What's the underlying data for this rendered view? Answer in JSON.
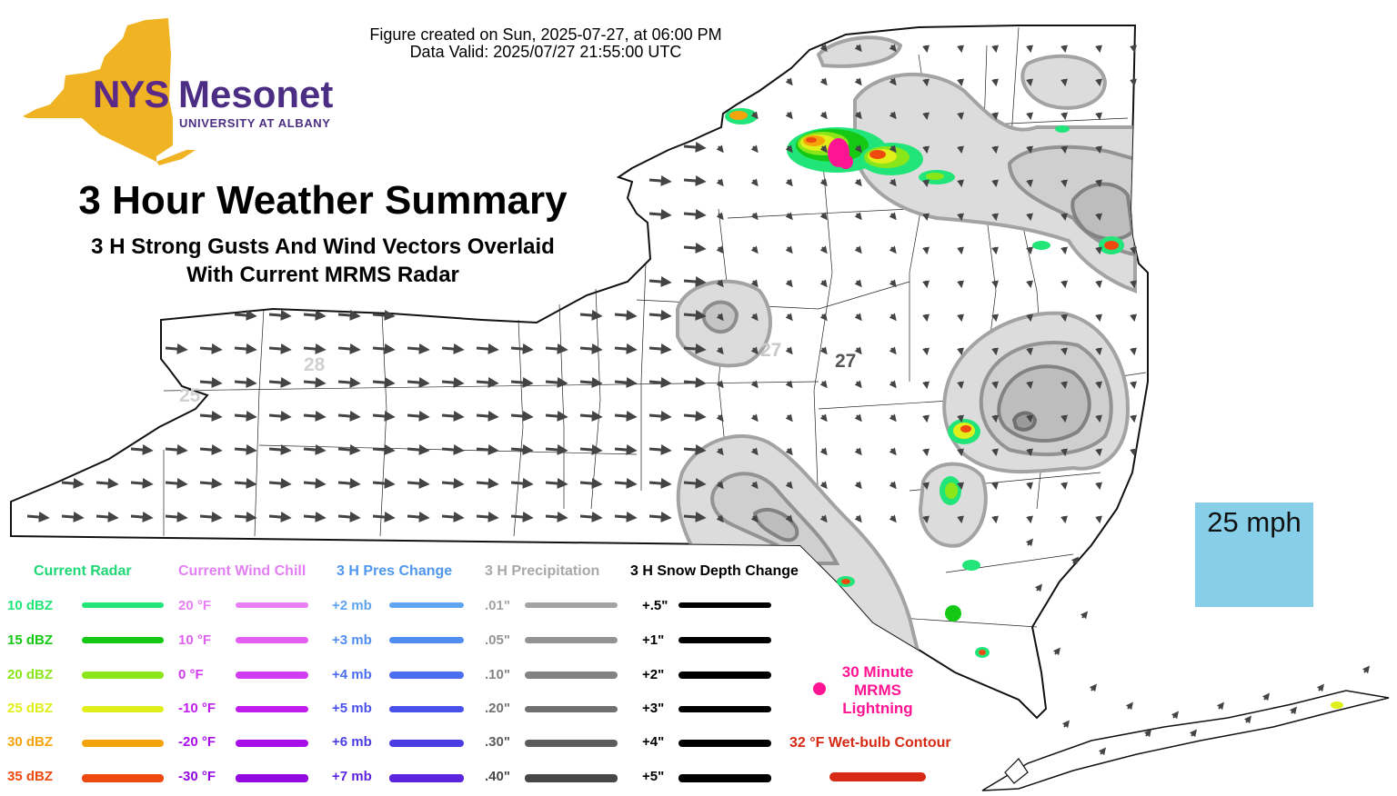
{
  "header": {
    "created": "Figure created on Sun, 2025-07-27, at 06:00 PM",
    "valid": "Data Valid: 2025/07/27 21:55:00 UTC"
  },
  "logo": {
    "brand_nys": "NYS",
    "brand_mesonet": "Mesonet",
    "university": "UNIVERSITY AT ALBANY",
    "state_color": "#f0b323",
    "purple": "#4b2e83"
  },
  "title": "3 Hour Weather Summary",
  "subtitle_line1": "3 H Strong Gusts And Wind Vectors Overlaid",
  "subtitle_line2": "With Current MRMS Radar",
  "scale": {
    "label": "25 mph",
    "color": "#87cfe9"
  },
  "contour_labels": [
    "25",
    "28",
    "27",
    "27"
  ],
  "legend": {
    "radar": {
      "title": "Current Radar",
      "color": "#1fd774",
      "items": [
        {
          "label": "10 dBZ",
          "color": "#22e57a"
        },
        {
          "label": "15 dBZ",
          "color": "#14c814"
        },
        {
          "label": "20 dBZ",
          "color": "#8ae619"
        },
        {
          "label": "25 dBZ",
          "color": "#e0ee1a"
        },
        {
          "label": "30 dBZ",
          "color": "#f5a30a"
        },
        {
          "label": "35 dBZ",
          "color": "#ee4a10"
        }
      ]
    },
    "wind_chill": {
      "title": "Current Wind Chill",
      "color": "#e27ff2",
      "items": [
        {
          "label": "20 °F",
          "color": "#e97ef5"
        },
        {
          "label": "10 °F",
          "color": "#e35ff3"
        },
        {
          "label": "0 °F",
          "color": "#d23cf0"
        },
        {
          "label": "-10 °F",
          "color": "#bf1ced"
        },
        {
          "label": "-20 °F",
          "color": "#a80ee8"
        },
        {
          "label": "-30 °F",
          "color": "#9308e0"
        }
      ]
    },
    "pressure": {
      "title": "3 H Pres Change",
      "color": "#4f97ef",
      "items": [
        {
          "label": "+2 mb",
          "color": "#5fa4ee"
        },
        {
          "label": "+3 mb",
          "color": "#4f8ef0"
        },
        {
          "label": "+4 mb",
          "color": "#4b6df0"
        },
        {
          "label": "+5 mb",
          "color": "#4a50ea"
        },
        {
          "label": "+6 mb",
          "color": "#4b3de3"
        },
        {
          "label": "+7 mb",
          "color": "#5b24dc"
        }
      ]
    },
    "precip": {
      "title": "3 H Precipitation",
      "color": "#a8a8a8",
      "items": [
        {
          "label": ".01\"",
          "color": "#a3a3a3"
        },
        {
          "label": ".05\"",
          "color": "#939393"
        },
        {
          "label": ".10\"",
          "color": "#828282"
        },
        {
          "label": ".20\"",
          "color": "#707070"
        },
        {
          "label": ".30\"",
          "color": "#5c5c5c"
        },
        {
          "label": ".40\"",
          "color": "#474747"
        }
      ]
    },
    "snow": {
      "title": "3 H Snow Depth Change",
      "color": "#000000",
      "items": [
        {
          "label": "+.5\"",
          "color": "#000000"
        },
        {
          "label": "+1\"",
          "color": "#000000"
        },
        {
          "label": "+2\"",
          "color": "#000000"
        },
        {
          "label": "+3\"",
          "color": "#000000"
        },
        {
          "label": "+4\"",
          "color": "#000000"
        },
        {
          "label": "+5\"",
          "color": "#000000"
        }
      ]
    },
    "lightning": {
      "label": "30 Minute MRMS Lightning",
      "color": "#ff1493"
    },
    "wetbulb": {
      "label": "32 °F Wet-bulb Contour",
      "color": "#d62a14"
    }
  }
}
